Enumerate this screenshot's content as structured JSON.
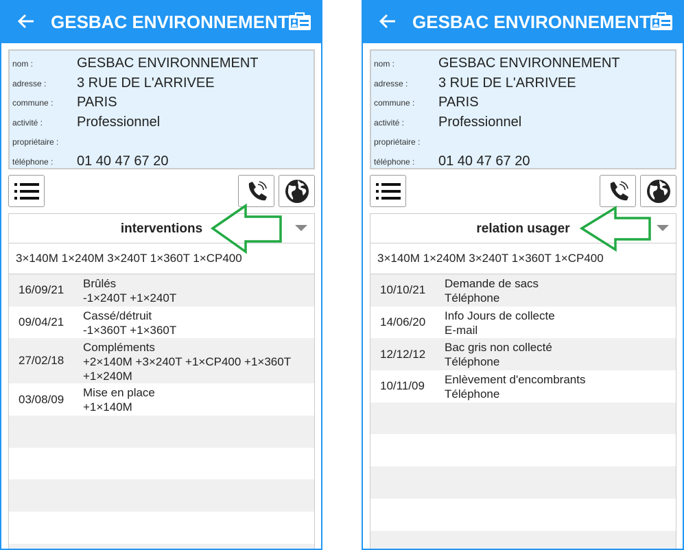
{
  "colors": {
    "header": "#2196F3",
    "info_bg": "#E3F2FD",
    "annotation_arrow": "#22AA44"
  },
  "icons": {
    "back": "arrow-left-icon",
    "card": "contact-card-icon",
    "list": "list-icon",
    "phone": "phone-icon",
    "globe": "globe-icon",
    "dropdown": "caret-down-icon"
  },
  "screens": [
    {
      "title": "GESBAC ENVIRONNEMENT",
      "fields": [
        {
          "label": "nom :",
          "value": "GESBAC ENVIRONNEMENT"
        },
        {
          "label": "adresse :",
          "value": "3 RUE DE L'ARRIVEE"
        },
        {
          "label": "commune :",
          "value": "PARIS"
        },
        {
          "label": "activité :",
          "value": "Professionnel"
        },
        {
          "label": "propriétaire :",
          "value": ""
        },
        {
          "label": "téléphone :",
          "value": "01 40 47 67 20"
        }
      ],
      "dropdown": "interventions",
      "summary": "3×140M 1×240M 3×240T 1×360T 1×CP400",
      "rows": [
        {
          "date": "16/09/21",
          "lines": [
            "Brûlés",
            "-1×240T  +1×240T"
          ]
        },
        {
          "date": "09/04/21",
          "lines": [
            "Cassé/détruit",
            "-1×360T  +1×360T"
          ]
        },
        {
          "date": "27/02/18",
          "lines": [
            "Compléments",
            "+2×140M +3×240T +1×CP400 +1×360T",
            "+1×240M"
          ]
        },
        {
          "date": "03/08/09",
          "lines": [
            "Mise en place",
            "+1×140M"
          ]
        }
      ],
      "empty_rows": 5
    },
    {
      "title": "GESBAC ENVIRONNEMENT",
      "fields": [
        {
          "label": "nom :",
          "value": "GESBAC ENVIRONNEMENT"
        },
        {
          "label": "adresse :",
          "value": "3 RUE DE L'ARRIVEE"
        },
        {
          "label": "commune :",
          "value": "PARIS"
        },
        {
          "label": "activité :",
          "value": "Professionnel"
        },
        {
          "label": "propriétaire :",
          "value": ""
        },
        {
          "label": "téléphone :",
          "value": "01 40 47 67 20"
        }
      ],
      "dropdown": "relation usager",
      "summary": "3×140M 1×240M 3×240T 1×360T 1×CP400",
      "rows": [
        {
          "date": "10/10/21",
          "lines": [
            "Demande de sacs",
            "Téléphone"
          ]
        },
        {
          "date": "14/06/20",
          "lines": [
            "Info Jours de collecte",
            "E-mail"
          ]
        },
        {
          "date": "12/12/12",
          "lines": [
            "Bac gris non collecté",
            "Téléphone"
          ]
        },
        {
          "date": "10/11/09",
          "lines": [
            "Enlèvement d'encombrants",
            "Téléphone"
          ]
        }
      ],
      "empty_rows": 5
    }
  ]
}
